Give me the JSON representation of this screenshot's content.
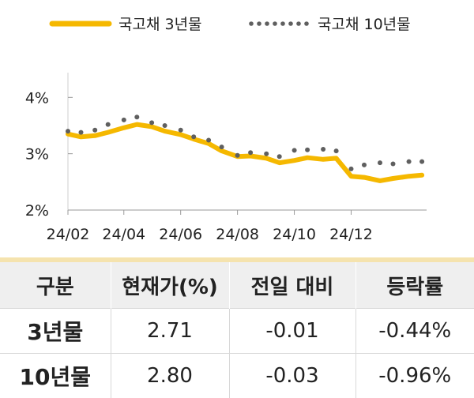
{
  "chart_data": {
    "type": "line",
    "y_unit": "%",
    "ylim": [
      2.0,
      4.0
    ],
    "yticks": [
      "2%",
      "3%",
      "4%"
    ],
    "xticks": [
      "24/02",
      "24/04",
      "24/06",
      "24/08",
      "24/10",
      "24/12"
    ],
    "x_range": [
      "2024-02",
      "2025-02"
    ],
    "legend_position": "top",
    "series": [
      {
        "name": "국고채 3년물",
        "style": "solid",
        "color": "#F5B800",
        "x": [
          "2024-02-01",
          "2024-02-15",
          "2024-03-01",
          "2024-03-15",
          "2024-04-01",
          "2024-04-15",
          "2024-05-01",
          "2024-05-15",
          "2024-06-01",
          "2024-06-15",
          "2024-07-01",
          "2024-07-15",
          "2024-08-01",
          "2024-08-15",
          "2024-09-01",
          "2024-09-15",
          "2024-10-01",
          "2024-10-15",
          "2024-11-01",
          "2024-11-15",
          "2024-12-01",
          "2024-12-15",
          "2025-01-01",
          "2025-01-15",
          "2025-02-01",
          "2025-02-15"
        ],
        "y": [
          3.35,
          3.3,
          3.32,
          3.38,
          3.46,
          3.52,
          3.48,
          3.4,
          3.34,
          3.26,
          3.18,
          3.05,
          2.95,
          2.96,
          2.92,
          2.84,
          2.88,
          2.93,
          2.9,
          2.92,
          2.6,
          2.58,
          2.52,
          2.56,
          2.6,
          2.62
        ]
      },
      {
        "name": "국고채 10년물",
        "style": "dotted",
        "color": "#5F5F5F",
        "x": [
          "2024-02-01",
          "2024-02-15",
          "2024-03-01",
          "2024-03-15",
          "2024-04-01",
          "2024-04-15",
          "2024-05-01",
          "2024-05-15",
          "2024-06-01",
          "2024-06-15",
          "2024-07-01",
          "2024-07-15",
          "2024-08-01",
          "2024-08-15",
          "2024-09-01",
          "2024-09-15",
          "2024-10-01",
          "2024-10-15",
          "2024-11-01",
          "2024-11-15",
          "2024-12-01",
          "2024-12-15",
          "2025-01-01",
          "2025-01-15",
          "2025-02-01",
          "2025-02-15"
        ],
        "y": [
          3.4,
          3.38,
          3.42,
          3.52,
          3.6,
          3.65,
          3.55,
          3.5,
          3.42,
          3.3,
          3.24,
          3.12,
          2.97,
          3.02,
          3.0,
          2.95,
          3.06,
          3.07,
          3.08,
          3.05,
          2.73,
          2.8,
          2.84,
          2.82,
          2.86,
          2.86
        ]
      }
    ]
  },
  "table": {
    "headers": [
      "구분",
      "현재가(%)",
      "전일 대비",
      "등락률"
    ],
    "rows": [
      [
        "3년물",
        "2.71",
        "-0.01",
        "-0.44%"
      ],
      [
        "10년물",
        "2.80",
        "-0.03",
        "-0.96%"
      ]
    ]
  }
}
